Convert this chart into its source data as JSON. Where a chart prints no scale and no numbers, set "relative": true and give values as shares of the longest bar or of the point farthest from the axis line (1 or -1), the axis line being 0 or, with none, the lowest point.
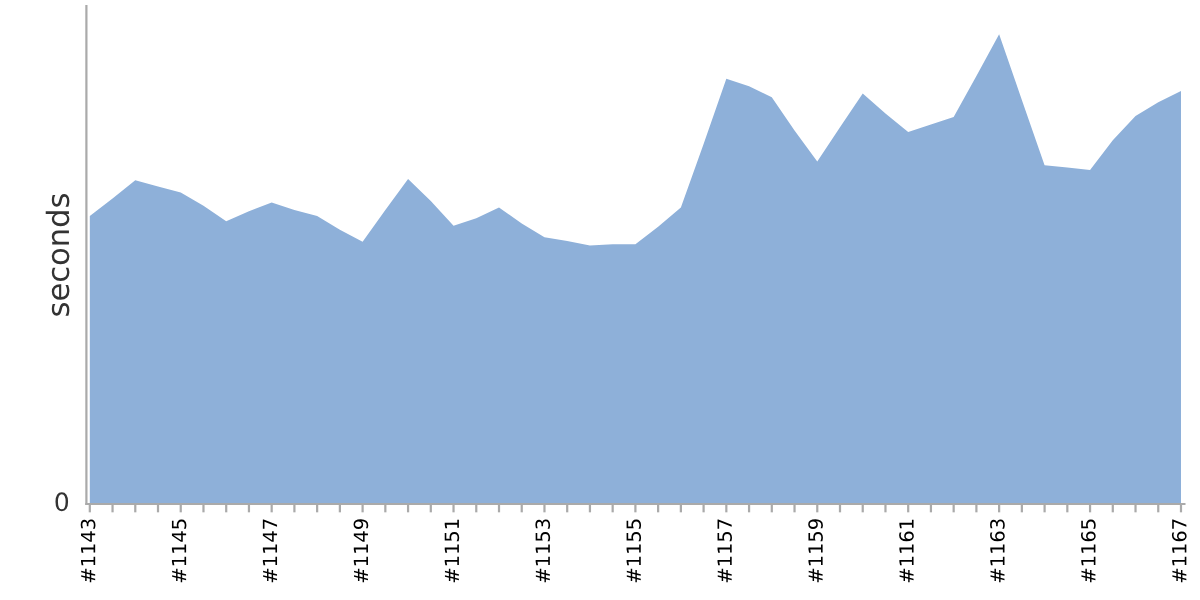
{
  "chart_data": {
    "type": "area",
    "relative": true,
    "ylabel": "seconds",
    "annotations": [
      "0"
    ],
    "grid": false,
    "legend": false,
    "categories": [
      "#1143",
      null,
      null,
      null,
      "#1145",
      null,
      null,
      null,
      "#1147",
      null,
      null,
      null,
      "#1149",
      null,
      null,
      null,
      "#1151",
      null,
      null,
      null,
      "#1153",
      null,
      null,
      null,
      "#1155",
      null,
      null,
      null,
      "#1157",
      null,
      null,
      null,
      "#1159",
      null,
      null,
      null,
      "#1161",
      null,
      null,
      null,
      "#1163",
      null,
      null,
      null,
      "#1165",
      null,
      null,
      null,
      "#1167"
    ],
    "series": [
      {
        "color": "#8eb0d9",
        "values": [
          0.613,
          0.65,
          0.689,
          0.676,
          0.663,
          0.635,
          0.602,
          0.623,
          0.642,
          0.626,
          0.613,
          0.584,
          0.558,
          0.626,
          0.692,
          0.645,
          0.592,
          0.608,
          0.631,
          0.597,
          0.568,
          0.56,
          0.55,
          0.553,
          0.553,
          0.59,
          0.631,
          0.766,
          0.905,
          0.889,
          0.866,
          0.795,
          0.729,
          0.802,
          0.874,
          0.831,
          0.792,
          0.808,
          0.824,
          0.911,
          1.0,
          0.86,
          0.721,
          0.716,
          0.711,
          0.774,
          0.826,
          0.855,
          0.879
        ]
      }
    ]
  }
}
